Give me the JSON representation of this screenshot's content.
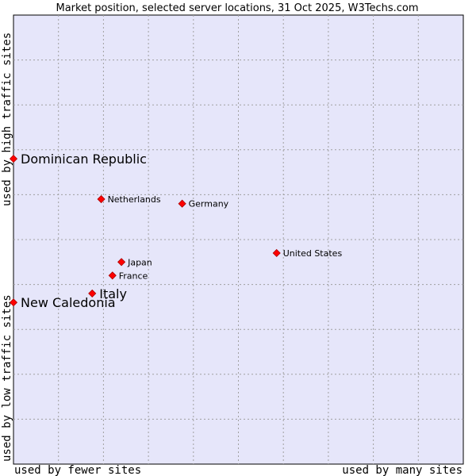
{
  "chart_data": {
    "type": "scatter",
    "title": "Market position, selected server locations, 31 Oct 2025, W3Techs.com",
    "xlabel_left": "used by fewer sites",
    "xlabel_right": "used by many sites",
    "ylabel_bottom": "used by low traffic sites",
    "ylabel_top": "used by high traffic sites",
    "xlim": [
      0,
      10
    ],
    "ylim": [
      0,
      10
    ],
    "grid": true,
    "colors": {
      "plot_bg": "#e6e6fa",
      "grid": "#a0a0a0",
      "point": "#ff0000",
      "point_edge": "#aa0000"
    },
    "points": [
      {
        "label": "Dominican Republic",
        "x": 0.0,
        "y": 6.8,
        "highlight": true
      },
      {
        "label": "Netherlands",
        "x": 1.95,
        "y": 5.9,
        "highlight": false
      },
      {
        "label": "Germany",
        "x": 3.75,
        "y": 5.8,
        "highlight": false
      },
      {
        "label": "United States",
        "x": 5.85,
        "y": 4.7,
        "highlight": false
      },
      {
        "label": "Japan",
        "x": 2.4,
        "y": 4.5,
        "highlight": false
      },
      {
        "label": "France",
        "x": 2.2,
        "y": 4.2,
        "highlight": false
      },
      {
        "label": "Italy",
        "x": 1.75,
        "y": 3.8,
        "highlight": true
      },
      {
        "label": "New Caledonia",
        "x": 0.0,
        "y": 3.6,
        "highlight": true
      }
    ]
  }
}
